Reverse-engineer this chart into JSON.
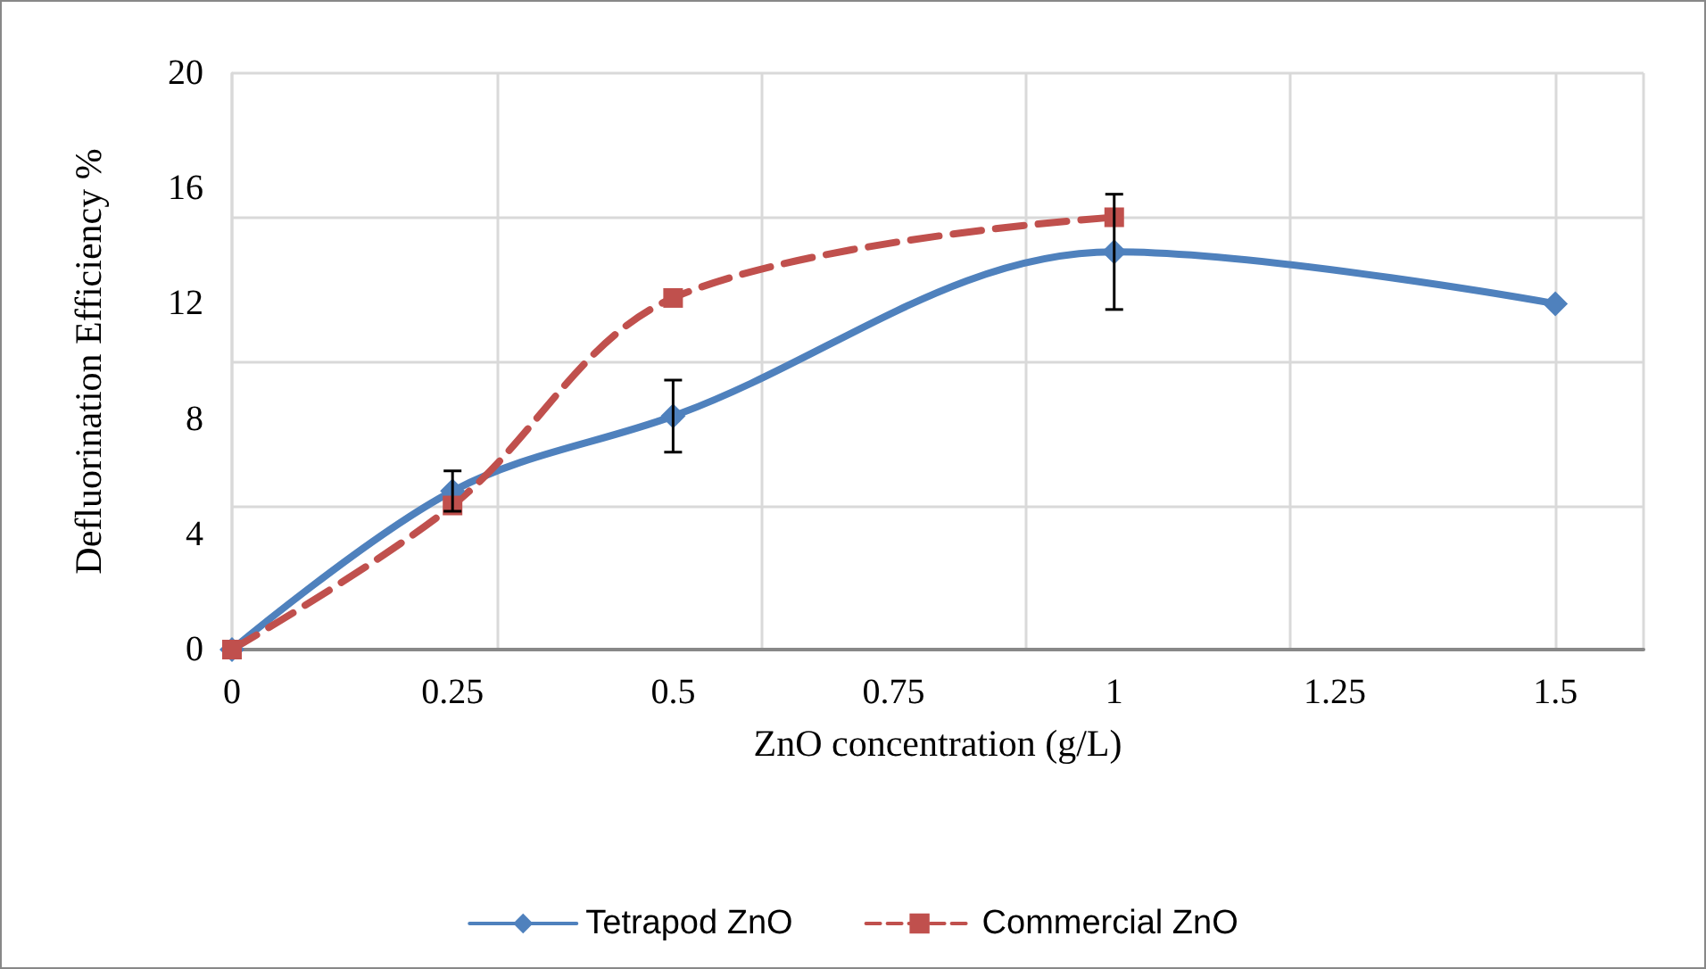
{
  "chart_data": {
    "type": "line",
    "xlabel": "ZnO concentration (g/L)",
    "ylabel": "Defluorination Efficiency %",
    "xlim": [
      0,
      1.6
    ],
    "xticks": [
      0,
      0.25,
      0.5,
      0.75,
      1,
      1.25,
      1.5
    ],
    "ylim": [
      0,
      20
    ],
    "yticks": [
      0,
      4,
      8,
      12,
      16,
      20
    ],
    "grid": true,
    "legend": "bottom",
    "series": [
      {
        "name": "Tetrapod ZnO",
        "color": "#4f81bd",
        "x": [
          0,
          0.25,
          0.5,
          1,
          1.5
        ],
        "values": [
          0,
          5.5,
          8.1,
          13.8,
          12
        ],
        "errors": [
          null,
          0.7,
          1.25,
          2.0,
          null
        ],
        "marker": "diamond",
        "line_style": "solid"
      },
      {
        "name": "Commercial ZnO",
        "color": "#c0504d",
        "x": [
          0,
          0.25,
          0.5,
          1
        ],
        "values": [
          0,
          5.0,
          12.2,
          15.0
        ],
        "marker": "square",
        "line_style": "dashed"
      }
    ]
  }
}
